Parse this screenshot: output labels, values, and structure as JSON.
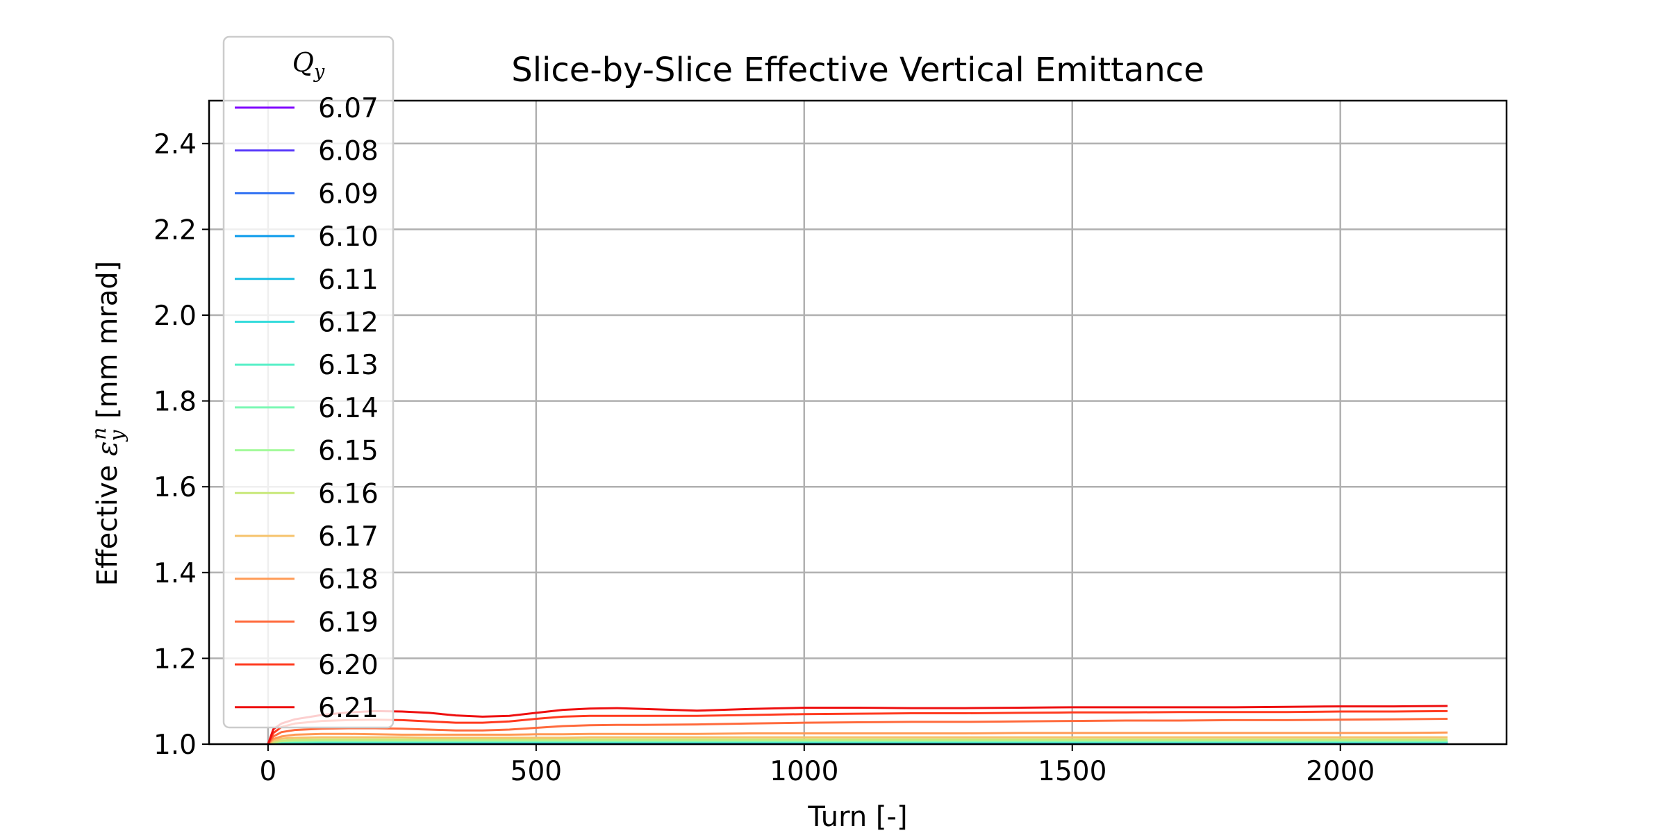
{
  "chart_data": {
    "type": "line",
    "title": "Slice-by-Slice Effective Vertical Emittance",
    "xlabel": "Turn [-]",
    "ylabel": "Effective ε_y^n [mm mrad]",
    "xlim": [
      -110,
      2310
    ],
    "ylim": [
      1.0,
      2.5
    ],
    "xticks": [
      "0",
      "500",
      "1000",
      "1500",
      "2000"
    ],
    "yticks": [
      "1.0",
      "1.2",
      "1.4",
      "1.6",
      "1.8",
      "2.0",
      "2.2",
      "2.4"
    ],
    "grid": true,
    "legend": {
      "title": "Q_y",
      "placement": "upper-left"
    },
    "x": [
      0,
      10,
      25,
      50,
      100,
      150,
      200,
      250,
      300,
      350,
      400,
      450,
      500,
      550,
      600,
      650,
      700,
      800,
      900,
      1000,
      1100,
      1200,
      1300,
      1400,
      1500,
      1600,
      1700,
      1800,
      1900,
      2000,
      2100,
      2200
    ],
    "series": [
      {
        "name": "6.07",
        "color": "#8000ff",
        "values": [
          1.0,
          1.002,
          1.003,
          1.003,
          1.003,
          1.003,
          1.003,
          1.003,
          1.003,
          1.003,
          1.003,
          1.003,
          1.003,
          1.003,
          1.003,
          1.003,
          1.003,
          1.003,
          1.003,
          1.003,
          1.003,
          1.003,
          1.003,
          1.003,
          1.003,
          1.003,
          1.003,
          1.003,
          1.003,
          1.003,
          1.003,
          1.003
        ]
      },
      {
        "name": "6.08",
        "color": "#5a3bfb",
        "values": [
          1.0,
          1.002,
          1.003,
          1.003,
          1.003,
          1.003,
          1.003,
          1.003,
          1.003,
          1.003,
          1.003,
          1.003,
          1.003,
          1.003,
          1.003,
          1.003,
          1.003,
          1.003,
          1.003,
          1.003,
          1.003,
          1.003,
          1.003,
          1.003,
          1.004,
          1.004,
          1.004,
          1.004,
          1.004,
          1.004,
          1.004,
          1.004
        ]
      },
      {
        "name": "6.09",
        "color": "#2f70f2",
        "values": [
          1.0,
          1.002,
          1.003,
          1.003,
          1.004,
          1.004,
          1.004,
          1.004,
          1.004,
          1.004,
          1.004,
          1.004,
          1.004,
          1.004,
          1.004,
          1.004,
          1.004,
          1.004,
          1.004,
          1.004,
          1.004,
          1.004,
          1.004,
          1.004,
          1.004,
          1.004,
          1.004,
          1.004,
          1.004,
          1.004,
          1.004,
          1.004
        ]
      },
      {
        "name": "6.10",
        "color": "#0a9aeb",
        "values": [
          1.0,
          1.002,
          1.004,
          1.004,
          1.004,
          1.004,
          1.004,
          1.004,
          1.004,
          1.004,
          1.004,
          1.004,
          1.004,
          1.004,
          1.004,
          1.004,
          1.004,
          1.004,
          1.004,
          1.004,
          1.004,
          1.004,
          1.004,
          1.004,
          1.004,
          1.005,
          1.005,
          1.005,
          1.005,
          1.005,
          1.005,
          1.005
        ]
      },
      {
        "name": "6.11",
        "color": "#18bde3",
        "values": [
          1.0,
          1.003,
          1.004,
          1.004,
          1.005,
          1.005,
          1.005,
          1.005,
          1.005,
          1.005,
          1.005,
          1.005,
          1.005,
          1.005,
          1.005,
          1.005,
          1.005,
          1.005,
          1.005,
          1.005,
          1.005,
          1.005,
          1.005,
          1.005,
          1.005,
          1.005,
          1.005,
          1.005,
          1.005,
          1.005,
          1.005,
          1.005
        ]
      },
      {
        "name": "6.12",
        "color": "#34dbdb",
        "values": [
          1.0,
          1.003,
          1.004,
          1.004,
          1.005,
          1.005,
          1.005,
          1.005,
          1.005,
          1.005,
          1.005,
          1.005,
          1.005,
          1.005,
          1.005,
          1.005,
          1.005,
          1.005,
          1.005,
          1.005,
          1.005,
          1.005,
          1.005,
          1.005,
          1.005,
          1.005,
          1.005,
          1.005,
          1.005,
          1.005,
          1.005,
          1.005
        ]
      },
      {
        "name": "6.13",
        "color": "#58f0c8",
        "values": [
          1.0,
          1.003,
          1.005,
          1.005,
          1.006,
          1.006,
          1.006,
          1.006,
          1.006,
          1.006,
          1.006,
          1.006,
          1.006,
          1.006,
          1.006,
          1.006,
          1.006,
          1.006,
          1.006,
          1.006,
          1.006,
          1.006,
          1.006,
          1.006,
          1.006,
          1.006,
          1.006,
          1.006,
          1.006,
          1.006,
          1.006,
          1.006
        ]
      },
      {
        "name": "6.14",
        "color": "#7cf8b4",
        "values": [
          1.0,
          1.004,
          1.006,
          1.007,
          1.007,
          1.007,
          1.007,
          1.007,
          1.007,
          1.007,
          1.007,
          1.007,
          1.007,
          1.007,
          1.007,
          1.007,
          1.007,
          1.007,
          1.007,
          1.007,
          1.007,
          1.007,
          1.007,
          1.007,
          1.007,
          1.007,
          1.007,
          1.007,
          1.007,
          1.007,
          1.007,
          1.007
        ]
      },
      {
        "name": "6.15",
        "color": "#a4fa9c",
        "values": [
          1.0,
          1.004,
          1.007,
          1.008,
          1.009,
          1.009,
          1.009,
          1.009,
          1.009,
          1.009,
          1.009,
          1.009,
          1.009,
          1.009,
          1.009,
          1.009,
          1.009,
          1.009,
          1.009,
          1.009,
          1.009,
          1.009,
          1.009,
          1.009,
          1.009,
          1.009,
          1.009,
          1.009,
          1.009,
          1.009,
          1.009,
          1.009
        ]
      },
      {
        "name": "6.16",
        "color": "#c8e87a",
        "values": [
          1.0,
          1.005,
          1.008,
          1.01,
          1.011,
          1.011,
          1.011,
          1.011,
          1.011,
          1.011,
          1.011,
          1.011,
          1.011,
          1.011,
          1.011,
          1.011,
          1.011,
          1.011,
          1.011,
          1.011,
          1.011,
          1.011,
          1.011,
          1.011,
          1.011,
          1.011,
          1.011,
          1.011,
          1.011,
          1.011,
          1.011,
          1.011
        ]
      },
      {
        "name": "6.17",
        "color": "#f6c36c",
        "values": [
          1.0,
          1.008,
          1.013,
          1.015,
          1.016,
          1.016,
          1.016,
          1.016,
          1.015,
          1.015,
          1.015,
          1.015,
          1.015,
          1.015,
          1.016,
          1.016,
          1.016,
          1.016,
          1.016,
          1.016,
          1.016,
          1.016,
          1.016,
          1.016,
          1.016,
          1.016,
          1.016,
          1.016,
          1.016,
          1.016,
          1.016,
          1.016
        ]
      },
      {
        "name": "6.18",
        "color": "#ff9a55",
        "values": [
          1.0,
          1.012,
          1.018,
          1.022,
          1.024,
          1.024,
          1.023,
          1.022,
          1.022,
          1.022,
          1.022,
          1.022,
          1.023,
          1.023,
          1.024,
          1.024,
          1.024,
          1.024,
          1.025,
          1.025,
          1.025,
          1.025,
          1.025,
          1.026,
          1.026,
          1.026,
          1.026,
          1.026,
          1.026,
          1.026,
          1.026,
          1.027
        ]
      },
      {
        "name": "6.19",
        "color": "#ff6a3c",
        "values": [
          1.0,
          1.018,
          1.028,
          1.033,
          1.036,
          1.037,
          1.037,
          1.036,
          1.034,
          1.032,
          1.032,
          1.034,
          1.038,
          1.042,
          1.044,
          1.045,
          1.045,
          1.046,
          1.048,
          1.05,
          1.051,
          1.052,
          1.052,
          1.053,
          1.054,
          1.055,
          1.055,
          1.056,
          1.056,
          1.057,
          1.058,
          1.059
        ]
      },
      {
        "name": "6.20",
        "color": "#ff3a1f",
        "values": [
          1.0,
          1.026,
          1.04,
          1.048,
          1.054,
          1.056,
          1.057,
          1.056,
          1.053,
          1.05,
          1.05,
          1.053,
          1.059,
          1.064,
          1.066,
          1.066,
          1.066,
          1.066,
          1.068,
          1.07,
          1.071,
          1.072,
          1.072,
          1.073,
          1.074,
          1.074,
          1.075,
          1.075,
          1.075,
          1.076,
          1.076,
          1.077
        ]
      },
      {
        "name": "6.21",
        "color": "#ee1010",
        "values": [
          1.0,
          1.035,
          1.048,
          1.058,
          1.068,
          1.074,
          1.077,
          1.076,
          1.073,
          1.067,
          1.064,
          1.066,
          1.073,
          1.08,
          1.083,
          1.084,
          1.082,
          1.078,
          1.082,
          1.085,
          1.085,
          1.084,
          1.084,
          1.085,
          1.086,
          1.086,
          1.086,
          1.086,
          1.087,
          1.088,
          1.088,
          1.089
        ]
      }
    ]
  }
}
